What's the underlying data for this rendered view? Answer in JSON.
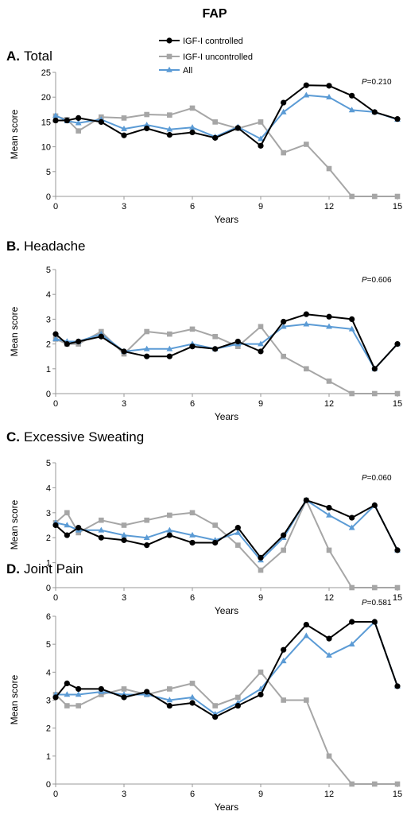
{
  "figure_title": "FAP",
  "legend": [
    {
      "label": "IGF-I controlled",
      "color": "#000000",
      "marker": "circle"
    },
    {
      "label": "IGF-I uncontrolled",
      "color": "#a6a6a6",
      "marker": "square"
    },
    {
      "label": "All",
      "color": "#5b9bd5",
      "marker": "triangle"
    }
  ],
  "chart_data": [
    {
      "type": "line",
      "panel_letter": "A.",
      "title": "Total",
      "xlabel": "Years",
      "ylabel": "Mean score",
      "xlim": [
        0,
        15
      ],
      "ylim": [
        0,
        25
      ],
      "xticks": [
        0,
        3,
        6,
        9,
        12,
        15
      ],
      "yticks": [
        0,
        5,
        10,
        15,
        20,
        25
      ],
      "grid": false,
      "legend_position": "top-center",
      "annotation": {
        "p_label": "P",
        "p_value": "=0.210"
      },
      "series": [
        {
          "name": "IGF-I controlled",
          "x": [
            0,
            0.5,
            1,
            2,
            3,
            4,
            5,
            6,
            7,
            8,
            9,
            10,
            11,
            12,
            13,
            14,
            15
          ],
          "y": [
            15.3,
            15.3,
            15.8,
            15.0,
            12.3,
            13.7,
            12.4,
            12.9,
            11.8,
            13.8,
            10.2,
            18.9,
            22.4,
            22.3,
            20.3,
            17.0,
            15.6
          ]
        },
        {
          "name": "IGF-I uncontrolled",
          "x": [
            0,
            0.5,
            1,
            2,
            3,
            4,
            5,
            6,
            7,
            8,
            9,
            10,
            11,
            12,
            13,
            14,
            15
          ],
          "y": [
            16.2,
            15.5,
            13.2,
            16.0,
            15.8,
            16.5,
            16.4,
            17.8,
            15.0,
            13.7,
            15.0,
            8.8,
            10.5,
            5.6,
            0,
            0,
            0
          ]
        },
        {
          "name": "All",
          "x": [
            0,
            0.5,
            1,
            2,
            3,
            4,
            5,
            6,
            7,
            8,
            9,
            10,
            11,
            12,
            13,
            14,
            15
          ],
          "y": [
            16.3,
            15.2,
            14.8,
            15.5,
            13.6,
            14.4,
            13.5,
            13.9,
            12.0,
            14.0,
            11.6,
            17.0,
            20.4,
            20.0,
            17.4,
            17.0,
            15.5
          ]
        }
      ]
    },
    {
      "type": "line",
      "panel_letter": "B.",
      "title": "Headache",
      "xlabel": "Years",
      "ylabel": "Mean score",
      "xlim": [
        0,
        15
      ],
      "ylim": [
        0,
        5
      ],
      "xticks": [
        0,
        3,
        6,
        9,
        12,
        15
      ],
      "yticks": [
        0,
        1,
        2,
        3,
        4,
        5
      ],
      "grid": false,
      "annotation": {
        "p_label": "P",
        "p_value": "=0.606"
      },
      "series": [
        {
          "name": "IGF-I controlled",
          "x": [
            0,
            0.5,
            1,
            2,
            3,
            4,
            5,
            6,
            7,
            8,
            9,
            10,
            11,
            12,
            13,
            14,
            15
          ],
          "y": [
            2.4,
            2.0,
            2.1,
            2.3,
            1.7,
            1.5,
            1.5,
            1.9,
            1.8,
            2.1,
            1.7,
            2.9,
            3.2,
            3.1,
            3.0,
            1.0,
            2.0
          ]
        },
        {
          "name": "IGF-I uncontrolled",
          "x": [
            0,
            0.5,
            1,
            2,
            3,
            4,
            5,
            6,
            7,
            8,
            9,
            10,
            11,
            12,
            13,
            14,
            15
          ],
          "y": [
            2.2,
            2.0,
            2.0,
            2.5,
            1.6,
            2.5,
            2.4,
            2.6,
            2.3,
            1.9,
            2.7,
            1.5,
            1.0,
            0.5,
            0,
            0,
            0
          ]
        },
        {
          "name": "All",
          "x": [
            0,
            0.5,
            1,
            2,
            3,
            4,
            5,
            6,
            7,
            8,
            9,
            10,
            11,
            12,
            13,
            14,
            15
          ],
          "y": [
            2.2,
            2.1,
            2.1,
            2.4,
            1.7,
            1.8,
            1.8,
            2.0,
            1.8,
            2.0,
            2.0,
            2.7,
            2.8,
            2.7,
            2.6,
            1.0,
            2.0
          ]
        }
      ]
    },
    {
      "type": "line",
      "panel_letter": "C.",
      "title": "Excessive Sweating",
      "xlabel": "Years",
      "ylabel": "Mean score",
      "xlim": [
        0,
        15
      ],
      "ylim": [
        0,
        5
      ],
      "xticks": [
        0,
        3,
        6,
        9,
        12,
        15
      ],
      "yticks": [
        0,
        1,
        2,
        3,
        4,
        5
      ],
      "grid": false,
      "annotation": {
        "p_label": "P",
        "p_value": "=0.060"
      },
      "series": [
        {
          "name": "IGF-I controlled",
          "x": [
            0,
            0.5,
            1,
            2,
            3,
            4,
            5,
            6,
            7,
            8,
            9,
            10,
            11,
            12,
            13,
            14,
            15
          ],
          "y": [
            2.5,
            2.1,
            2.4,
            2.0,
            1.9,
            1.7,
            2.1,
            1.8,
            1.8,
            2.4,
            1.2,
            2.1,
            3.5,
            3.2,
            2.8,
            3.3,
            1.5
          ]
        },
        {
          "name": "IGF-I uncontrolled",
          "x": [
            0,
            0.5,
            1,
            2,
            3,
            4,
            5,
            6,
            7,
            8,
            9,
            10,
            11,
            12,
            13,
            14,
            15
          ],
          "y": [
            2.6,
            3.0,
            2.2,
            2.7,
            2.5,
            2.7,
            2.9,
            3.0,
            2.5,
            1.7,
            0.7,
            1.5,
            3.5,
            1.5,
            0,
            0,
            0
          ]
        },
        {
          "name": "All",
          "x": [
            0,
            0.5,
            1,
            2,
            3,
            4,
            5,
            6,
            7,
            8,
            9,
            10,
            11,
            12,
            13,
            14,
            15
          ],
          "y": [
            2.6,
            2.5,
            2.3,
            2.3,
            2.1,
            2.0,
            2.3,
            2.1,
            1.9,
            2.2,
            1.1,
            2.0,
            3.5,
            2.9,
            2.4,
            3.3,
            1.5
          ]
        }
      ]
    },
    {
      "type": "line",
      "panel_letter": "D.",
      "title": "Joint Pain",
      "xlabel": "Years",
      "ylabel": "Mean score",
      "xlim": [
        0,
        15
      ],
      "ylim": [
        0,
        6
      ],
      "xticks": [
        0,
        3,
        6,
        9,
        12,
        15
      ],
      "yticks": [
        0,
        1,
        2,
        3,
        4,
        5,
        6
      ],
      "grid": false,
      "annotation": {
        "p_label": "P",
        "p_value": "=0.581"
      },
      "series": [
        {
          "name": "IGF-I controlled",
          "x": [
            0,
            0.5,
            1,
            2,
            3,
            4,
            5,
            6,
            7,
            8,
            9,
            10,
            11,
            12,
            13,
            14,
            15
          ],
          "y": [
            3.1,
            3.6,
            3.4,
            3.4,
            3.1,
            3.3,
            2.8,
            2.9,
            2.4,
            2.8,
            3.2,
            4.8,
            5.7,
            5.2,
            5.8,
            5.8,
            3.5
          ]
        },
        {
          "name": "IGF-I uncontrolled",
          "x": [
            0,
            0.5,
            1,
            2,
            3,
            4,
            5,
            6,
            7,
            8,
            9,
            10,
            11,
            12,
            13,
            14,
            15
          ],
          "y": [
            3.2,
            2.8,
            2.8,
            3.2,
            3.4,
            3.2,
            3.4,
            3.6,
            2.8,
            3.1,
            4.0,
            3.0,
            3.0,
            1.0,
            0,
            0,
            0
          ]
        },
        {
          "name": "All",
          "x": [
            0,
            0.5,
            1,
            2,
            3,
            4,
            5,
            6,
            7,
            8,
            9,
            10,
            11,
            12,
            13,
            14,
            15
          ],
          "y": [
            3.2,
            3.2,
            3.2,
            3.3,
            3.2,
            3.2,
            3.0,
            3.1,
            2.5,
            2.9,
            3.4,
            4.4,
            5.3,
            4.6,
            5.0,
            5.8,
            3.5
          ]
        }
      ]
    }
  ]
}
